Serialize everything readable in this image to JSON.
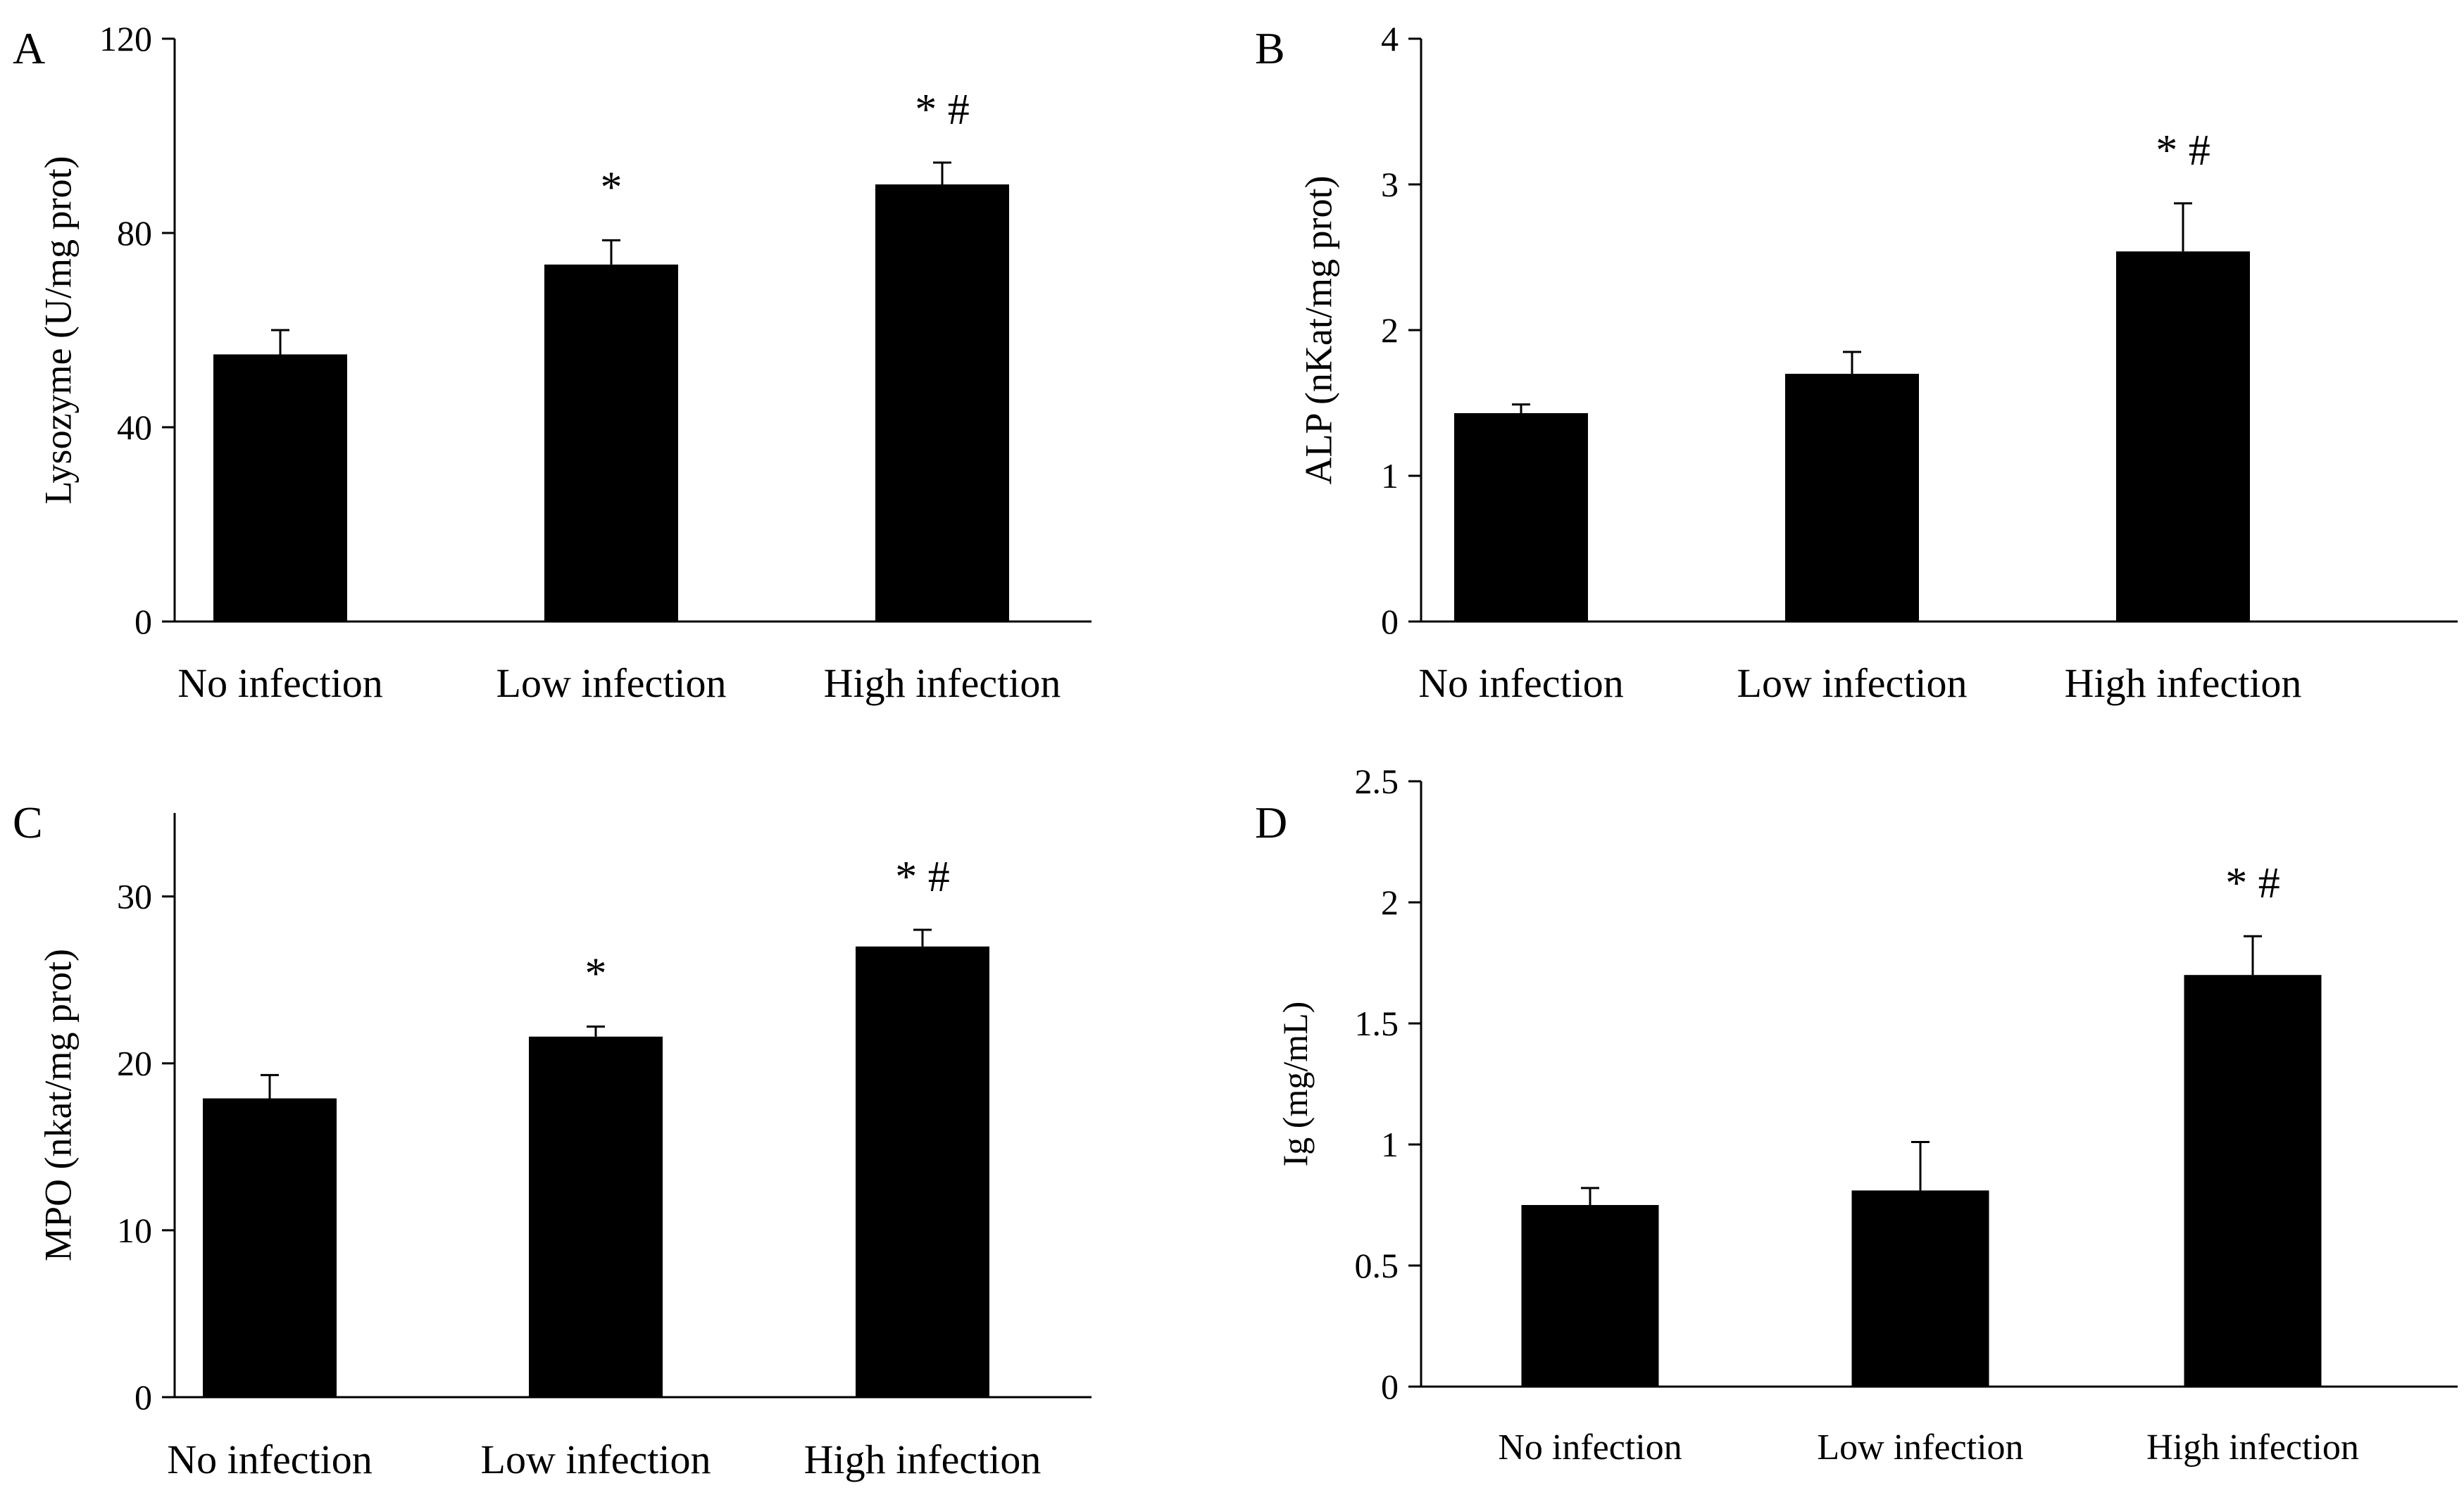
{
  "chart_data": [
    {
      "panel": "A",
      "type": "bar",
      "categories": [
        "No infection",
        "Low infection",
        "High infection"
      ],
      "values": [
        55,
        73.5,
        90
      ],
      "errors": [
        5,
        5,
        4.5
      ],
      "annotations": [
        "",
        "*",
        "* #"
      ],
      "ylabel": "Lysozyme (U/mg prot)",
      "ylim": [
        0,
        120
      ],
      "yticks": [
        0,
        40,
        80,
        120
      ],
      "ytick_labels": [
        "0",
        "40",
        "80",
        "120"
      ],
      "bar_color": "#000000"
    },
    {
      "panel": "B",
      "type": "bar",
      "categories": [
        "No infection",
        "Low infection",
        "High infection"
      ],
      "values": [
        1.43,
        1.7,
        2.54
      ],
      "errors": [
        0.06,
        0.15,
        0.33
      ],
      "annotations": [
        "",
        "",
        "* #"
      ],
      "ylabel": "ALP (nKat/mg prot)",
      "ylim": [
        0,
        4
      ],
      "yticks": [
        0,
        1,
        2,
        3,
        4
      ],
      "ytick_labels": [
        "0",
        "1",
        "2",
        "3",
        "4"
      ],
      "bar_color": "#000000"
    },
    {
      "panel": "C",
      "type": "bar",
      "categories": [
        "No infection",
        "Low infection",
        "High infection"
      ],
      "values": [
        17.9,
        21.6,
        27
      ],
      "errors": [
        1.4,
        0.6,
        1.0
      ],
      "annotations": [
        "",
        "*",
        "* #"
      ],
      "ylabel": "MPO (nkat/mg prot)",
      "ylim": [
        0,
        35
      ],
      "yticks": [
        0,
        10,
        20,
        30
      ],
      "ytick_labels": [
        "0",
        "10",
        "20",
        "30"
      ],
      "bar_color": "#000000"
    },
    {
      "panel": "D",
      "type": "bar",
      "categories": [
        "No infection",
        "Low infection",
        "High infection"
      ],
      "values": [
        0.75,
        0.81,
        1.7
      ],
      "errors": [
        0.07,
        0.2,
        0.16
      ],
      "annotations": [
        "",
        "",
        "* #"
      ],
      "ylabel": "Ig (mg/mL)",
      "ylim": [
        0,
        2.5
      ],
      "yticks": [
        0,
        0.5,
        1,
        1.5,
        2,
        2.5
      ],
      "ytick_labels": [
        "0",
        "0.5",
        "1",
        "1.5",
        "2",
        "2.5"
      ],
      "bar_color": "#000000"
    }
  ]
}
